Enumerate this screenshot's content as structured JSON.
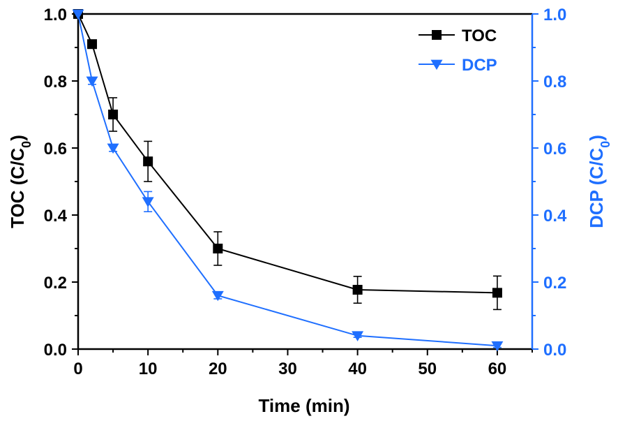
{
  "chart_data": {
    "type": "line",
    "xlabel": "Time (min)",
    "ylabel_left": {
      "main": "TOC (C/C",
      "sub": "0",
      "close": ")"
    },
    "ylabel_right": {
      "main": "DCP (C/C",
      "sub": "0",
      "close": ")"
    },
    "xlim": [
      0,
      65
    ],
    "ylim_left": [
      0,
      1.0
    ],
    "ylim_right": [
      0,
      1.0
    ],
    "xticks": [
      0,
      10,
      20,
      30,
      40,
      50,
      60
    ],
    "yticks_left": [
      0.0,
      0.2,
      0.4,
      0.6,
      0.8,
      1.0
    ],
    "yticks_right": [
      0.0,
      0.2,
      0.4,
      0.6,
      0.8,
      1.0
    ],
    "legend_position": "top-right",
    "series": [
      {
        "name": "TOC",
        "color": "#000000",
        "marker": "square",
        "axis": "left",
        "x": [
          0,
          2,
          5,
          10,
          20,
          40,
          60
        ],
        "y": [
          1.0,
          0.91,
          0.7,
          0.56,
          0.3,
          0.177,
          0.168
        ],
        "err": [
          0,
          0,
          0.05,
          0.06,
          0.05,
          0.04,
          0.05
        ]
      },
      {
        "name": "DCP",
        "color": "#1f6fff",
        "marker": "triangle-down",
        "axis": "right",
        "x": [
          0,
          2,
          5,
          10,
          20,
          40,
          60
        ],
        "y": [
          1.0,
          0.8,
          0.6,
          0.44,
          0.16,
          0.04,
          0.01
        ],
        "err": [
          0,
          0.01,
          0.01,
          0.03,
          0.01,
          0.005,
          0.005
        ]
      }
    ]
  }
}
